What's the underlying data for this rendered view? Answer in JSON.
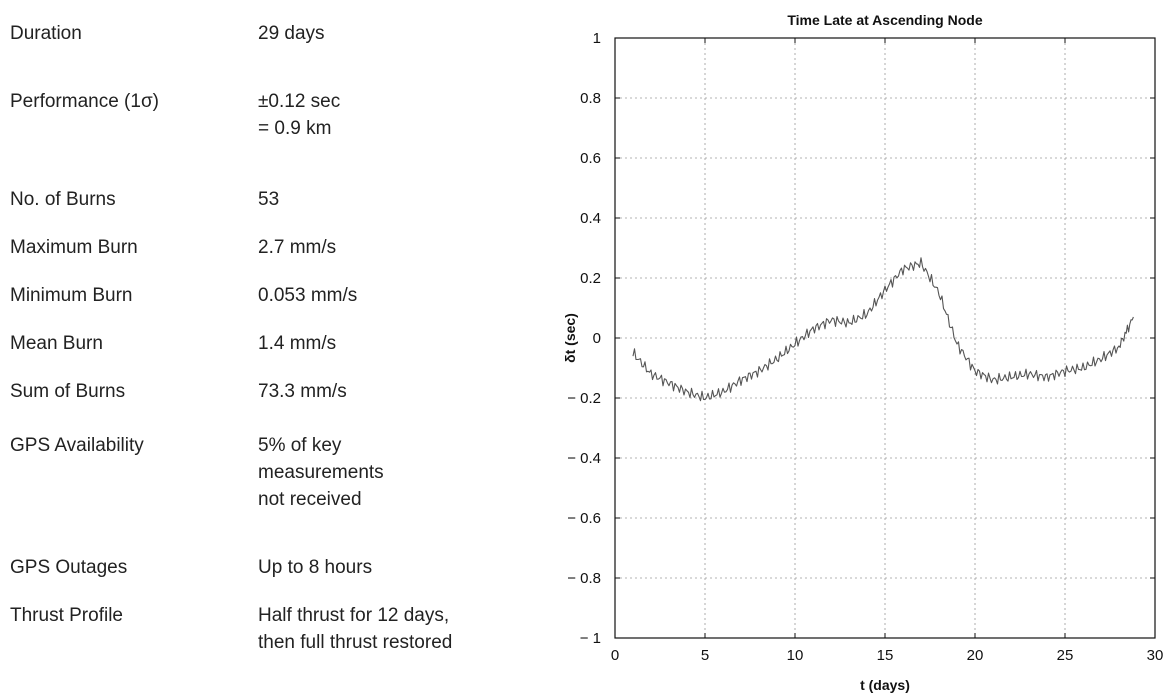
{
  "summary": {
    "rows": [
      {
        "label": "Duration",
        "value": [
          "29 days"
        ]
      },
      {
        "label": "Performance (1σ)",
        "value": [
          "±0.12 sec",
          "= 0.9 km"
        ]
      },
      {
        "label": "No. of Burns",
        "value": [
          "53"
        ]
      },
      {
        "label": "Maximum Burn",
        "value": [
          "2.7 mm/s"
        ]
      },
      {
        "label": "Minimum Burn",
        "value": [
          "0.053 mm/s"
        ]
      },
      {
        "label": "Mean Burn",
        "value": [
          "1.4 mm/s"
        ]
      },
      {
        "label": "Sum of Burns",
        "value": [
          "73.3 mm/s"
        ]
      },
      {
        "label": "GPS Availability",
        "value": [
          "5% of key",
          "measurements",
          "not received"
        ]
      },
      {
        "label": "GPS Outages",
        "value": [
          "Up to 8 hours"
        ]
      },
      {
        "label": "Thrust Profile",
        "value": [
          "Half thrust for 12 days,",
          "then full thrust restored"
        ]
      }
    ]
  },
  "chart_data": {
    "type": "line",
    "title": "Time Late at Ascending Node",
    "xlabel": "t (days)",
    "ylabel": "δt (sec)",
    "xlim": [
      0,
      30
    ],
    "ylim": [
      -1,
      1
    ],
    "x_ticks": [
      0,
      5,
      10,
      15,
      20,
      25,
      30
    ],
    "y_ticks": [
      1,
      0.8,
      0.6,
      0.4,
      0.2,
      0,
      -0.2,
      -0.4,
      -0.6,
      -0.8,
      -1
    ],
    "y_tick_labels": [
      "1",
      "0.8",
      "0.6",
      "0.4",
      "0.2",
      "0",
      "− 0.2",
      "− 0.4",
      "− 0.6",
      "− 0.8",
      "− 1"
    ],
    "grid": true,
    "line_color": "#555555",
    "x": [
      1,
      2,
      3,
      4,
      5,
      6,
      7,
      8,
      9,
      10,
      11,
      12,
      13,
      14,
      15,
      16,
      17,
      18,
      19,
      20,
      21,
      22,
      23,
      24,
      25,
      26,
      27,
      28,
      28.8
    ],
    "y": [
      -0.05,
      -0.12,
      -0.15,
      -0.18,
      -0.2,
      -0.18,
      -0.14,
      -0.11,
      -0.07,
      -0.02,
      0.03,
      0.06,
      0.05,
      0.08,
      0.16,
      0.23,
      0.25,
      0.15,
      -0.02,
      -0.11,
      -0.14,
      -0.13,
      -0.12,
      -0.13,
      -0.11,
      -0.1,
      -0.07,
      -0.03,
      0.07
    ]
  }
}
